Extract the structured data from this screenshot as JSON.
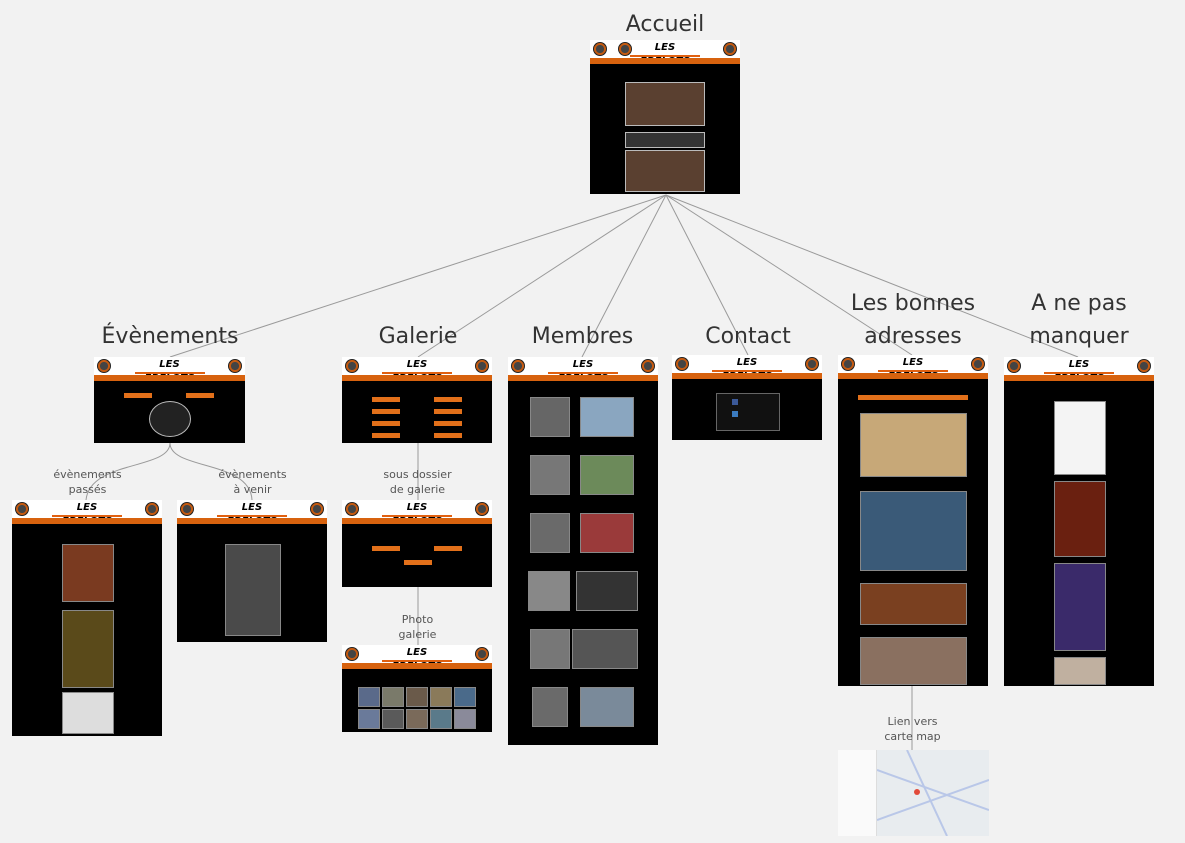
{
  "pages": {
    "accueil": "Accueil",
    "evenements": "Évènements",
    "galerie": "Galerie",
    "membres": "Membres",
    "contact": "Contact",
    "bonnes_adresses_1": "Les bonnes",
    "bonnes_adresses_2": "adresses",
    "ne_pas_manquer_1": "A ne pas",
    "ne_pas_manquer_2": "manquer"
  },
  "sub_labels": {
    "events_past_1": "évènements",
    "events_past_2": "passés",
    "events_future_1": "évènements",
    "events_future_2": "à venir",
    "subfolder_1": "sous dossier",
    "subfolder_2": "de galerie",
    "photo_1": "Photo",
    "photo_2": "galerie",
    "map_1": "Lien vers",
    "map_2": "carte map"
  },
  "site_logo": "LES FRELOTS",
  "colors": {
    "accent": "#d7620e",
    "background": "#f2f2f2",
    "thumb_bg": "#000000",
    "connector": "#999999"
  }
}
